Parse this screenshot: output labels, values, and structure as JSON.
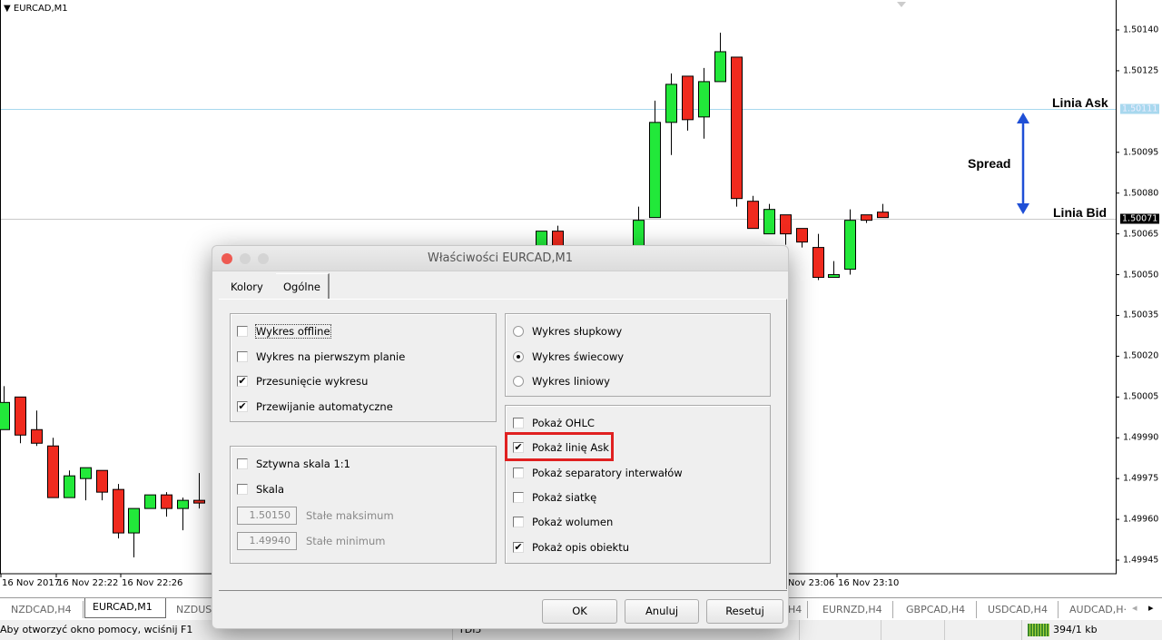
{
  "chart": {
    "symbol_label": "EURCAD,M1",
    "ask_line_label": "Linia Ask",
    "bid_line_label": "Linia Bid",
    "spread_label": "Spread",
    "ask_price": "1.50111",
    "bid_price": "1.50071",
    "colors": {
      "bull": "#22e83a",
      "bear": "#f02a1e",
      "ask_line": "#a8d8ee",
      "bid_line": "#c8c8c8",
      "arrow": "#1f4fd6",
      "highlight": "#e02020"
    }
  },
  "chart_data": {
    "type": "candlestick",
    "ylim": [
      1.49935,
      1.50151
    ],
    "y_ticks": [
      "1.50140",
      "1.50125",
      "1.50095",
      "1.50080",
      "1.50065",
      "1.50050",
      "1.50035",
      "1.50020",
      "1.50005",
      "1.49990",
      "1.49975",
      "1.49960",
      "1.49945"
    ],
    "x_ticks": [
      {
        "label": "16 Nov 2017",
        "index": 0
      },
      {
        "label": "16 Nov 22:22",
        "index": 4
      },
      {
        "label": "16 Nov 22:26",
        "index": 8
      },
      {
        "label": "16 Nov 23:06",
        "index": 48
      },
      {
        "label": "16 Nov 23:10",
        "index": 52
      }
    ],
    "candles": [
      {
        "i": 0,
        "o": 1.49993,
        "h": 1.50009,
        "l": 1.49993,
        "c": 1.50003
      },
      {
        "i": 1,
        "o": 1.50005,
        "h": 1.50005,
        "l": 1.49988,
        "c": 1.49991
      },
      {
        "i": 2,
        "o": 1.49993,
        "h": 1.5,
        "l": 1.49987,
        "c": 1.49988
      },
      {
        "i": 3,
        "o": 1.49987,
        "h": 1.4999,
        "l": 1.49968,
        "c": 1.49968
      },
      {
        "i": 4,
        "o": 1.49968,
        "h": 1.49978,
        "l": 1.49968,
        "c": 1.49976
      },
      {
        "i": 5,
        "o": 1.49975,
        "h": 1.49979,
        "l": 1.49967,
        "c": 1.49979
      },
      {
        "i": 6,
        "o": 1.49978,
        "h": 1.49978,
        "l": 1.49967,
        "c": 1.4997
      },
      {
        "i": 7,
        "o": 1.49971,
        "h": 1.49973,
        "l": 1.49953,
        "c": 1.49955
      },
      {
        "i": 8,
        "o": 1.49955,
        "h": 1.49964,
        "l": 1.49946,
        "c": 1.49964
      },
      {
        "i": 9,
        "o": 1.49964,
        "h": 1.49969,
        "l": 1.49964,
        "c": 1.49969
      },
      {
        "i": 10,
        "o": 1.49969,
        "h": 1.4997,
        "l": 1.49961,
        "c": 1.49964
      },
      {
        "i": 11,
        "o": 1.49964,
        "h": 1.49968,
        "l": 1.49956,
        "c": 1.49967
      },
      {
        "i": 12,
        "o": 1.49967,
        "h": 1.49977,
        "l": 1.49964,
        "c": 1.49966
      },
      {
        "i": 33,
        "o": 1.50055,
        "h": 1.50066,
        "l": 1.5005,
        "c": 1.50066
      },
      {
        "i": 34,
        "o": 1.50066,
        "h": 1.50068,
        "l": 1.50055,
        "c": 1.50058
      },
      {
        "i": 39,
        "o": 1.50059,
        "h": 1.50075,
        "l": 1.50059,
        "c": 1.5007
      },
      {
        "i": 40,
        "o": 1.50071,
        "h": 1.50114,
        "l": 1.50071,
        "c": 1.50106
      },
      {
        "i": 41,
        "o": 1.50106,
        "h": 1.50124,
        "l": 1.50094,
        "c": 1.5012
      },
      {
        "i": 42,
        "o": 1.50123,
        "h": 1.50123,
        "l": 1.50103,
        "c": 1.50107
      },
      {
        "i": 43,
        "o": 1.50108,
        "h": 1.50126,
        "l": 1.501,
        "c": 1.50121
      },
      {
        "i": 44,
        "o": 1.50121,
        "h": 1.50139,
        "l": 1.50121,
        "c": 1.50132
      },
      {
        "i": 45,
        "o": 1.5013,
        "h": 1.5013,
        "l": 1.50075,
        "c": 1.50078
      },
      {
        "i": 46,
        "o": 1.50077,
        "h": 1.50079,
        "l": 1.50067,
        "c": 1.50067
      },
      {
        "i": 47,
        "o": 1.50065,
        "h": 1.50076,
        "l": 1.50065,
        "c": 1.50074
      },
      {
        "i": 48,
        "o": 1.50072,
        "h": 1.50072,
        "l": 1.50061,
        "c": 1.50065
      },
      {
        "i": 49,
        "o": 1.50067,
        "h": 1.50067,
        "l": 1.5006,
        "c": 1.50062
      },
      {
        "i": 50,
        "o": 1.5006,
        "h": 1.50065,
        "l": 1.50048,
        "c": 1.50049
      },
      {
        "i": 51,
        "o": 1.50049,
        "h": 1.50055,
        "l": 1.50049,
        "c": 1.5005
      },
      {
        "i": 52,
        "o": 1.50052,
        "h": 1.50074,
        "l": 1.5005,
        "c": 1.5007
      },
      {
        "i": 53,
        "o": 1.50072,
        "h": 1.50072,
        "l": 1.50069,
        "c": 1.5007
      },
      {
        "i": 54,
        "o": 1.50073,
        "h": 1.50076,
        "l": 1.50071,
        "c": 1.50071
      }
    ]
  },
  "tabs": [
    {
      "label": "NZDCAD,H4",
      "active": false
    },
    {
      "label": "EURCAD,M1",
      "active": true
    },
    {
      "label": "NZDUS",
      "active": false
    },
    {
      "label": "H4",
      "active": false
    },
    {
      "label": "EURNZD,H4",
      "active": false
    },
    {
      "label": "GBPCAD,H4",
      "active": false
    },
    {
      "label": "USDCAD,H4",
      "active": false
    },
    {
      "label": "AUDCAD,H·",
      "active": false
    }
  ],
  "status": {
    "help_text": "Aby otworzyć okno pomocy, wciśnij F1",
    "profile": "TDI5",
    "traffic": "394/1 kb"
  },
  "dialog": {
    "title": "Właściwości EURCAD,M1",
    "tabs": [
      {
        "label": "Kolory"
      },
      {
        "label": "Ogólne",
        "active": true
      }
    ],
    "left_options": [
      {
        "label": "Wykres offline",
        "checked": false
      },
      {
        "label": "Wykres na pierwszym planie",
        "checked": false
      },
      {
        "label": "Przesunięcie wykresu",
        "checked": true
      },
      {
        "label": "Przewijanie automatyczne",
        "checked": true
      }
    ],
    "scale_options": [
      {
        "label": "Sztywna skala 1:1",
        "checked": false
      },
      {
        "label": "Skala",
        "checked": false
      }
    ],
    "fixed_max": {
      "value": "1.50150",
      "label": "Stałe maksimum"
    },
    "fixed_min": {
      "value": "1.49940",
      "label": "Stałe minimum"
    },
    "chart_types": [
      {
        "label": "Wykres słupkowy",
        "selected": false
      },
      {
        "label": "Wykres świecowy",
        "selected": true
      },
      {
        "label": "Wykres liniowy",
        "selected": false
      }
    ],
    "show_options": [
      {
        "label": "Pokaż OHLC",
        "checked": false
      },
      {
        "label": "Pokaż linię Ask",
        "checked": true
      },
      {
        "label": "Pokaż separatory interwałów",
        "checked": false
      },
      {
        "label": "Pokaż siatkę",
        "checked": false
      },
      {
        "label": "Pokaż wolumen",
        "checked": false
      },
      {
        "label": "Pokaż opis obiektu",
        "checked": true
      }
    ],
    "buttons": {
      "ok": "OK",
      "cancel": "Anuluj",
      "reset": "Resetuj"
    }
  }
}
